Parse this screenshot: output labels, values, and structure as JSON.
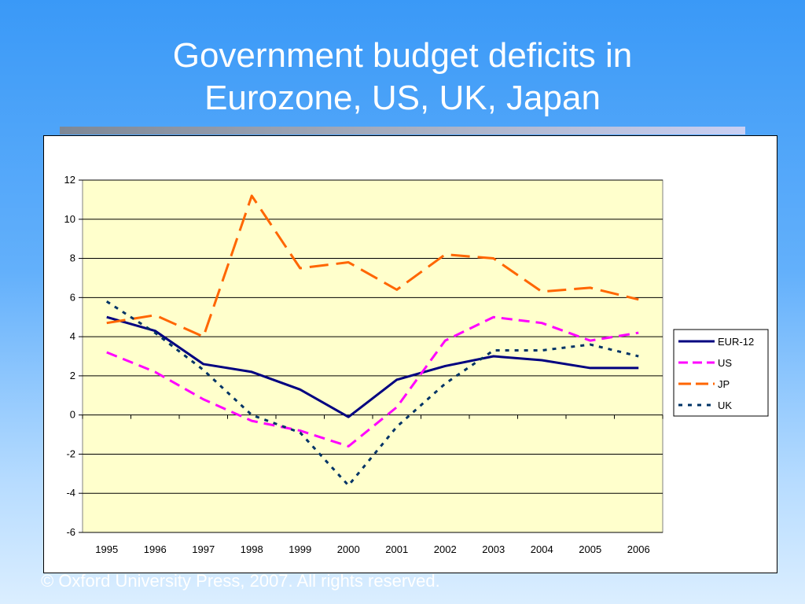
{
  "slide": {
    "title_line1": "Government budget deficits in",
    "title_line2": "Eurozone, US, UK, Japan",
    "footer": "© Oxford University Press, 2007. All rights reserved."
  },
  "chart_data": {
    "type": "line",
    "title": "",
    "xlabel": "",
    "ylabel": "",
    "categories": [
      "1995",
      "1996",
      "1997",
      "1998",
      "1999",
      "2000",
      "2001",
      "2002",
      "2003",
      "2004",
      "2005",
      "2006"
    ],
    "ylim": [
      -6,
      12
    ],
    "yticks": [
      -6,
      -4,
      -2,
      0,
      2,
      4,
      6,
      8,
      10,
      12
    ],
    "grid": true,
    "legend_position": "right",
    "plot_background": "#ffffcc",
    "series": [
      {
        "name": "EUR-12",
        "color": "#000080",
        "style": "solid",
        "values": [
          5.0,
          4.3,
          2.6,
          2.2,
          1.3,
          -0.1,
          1.8,
          2.5,
          3.0,
          2.8,
          2.4,
          2.4
        ]
      },
      {
        "name": "US",
        "color": "#ff00ff",
        "style": "dashed",
        "values": [
          3.2,
          2.2,
          0.8,
          -0.3,
          -0.8,
          -1.6,
          0.4,
          3.8,
          5.0,
          4.7,
          3.8,
          4.2
        ]
      },
      {
        "name": "JP",
        "color": "#ff6600",
        "style": "longdash",
        "values": [
          4.7,
          5.1,
          4.0,
          11.2,
          7.5,
          7.8,
          6.4,
          8.2,
          8.0,
          6.3,
          6.5,
          5.9
        ]
      },
      {
        "name": "UK",
        "color": "#003366",
        "style": "dotted",
        "values": [
          5.8,
          4.2,
          2.3,
          0.0,
          -0.9,
          -3.6,
          -0.6,
          1.6,
          3.3,
          3.3,
          3.6,
          3.0
        ]
      }
    ]
  }
}
